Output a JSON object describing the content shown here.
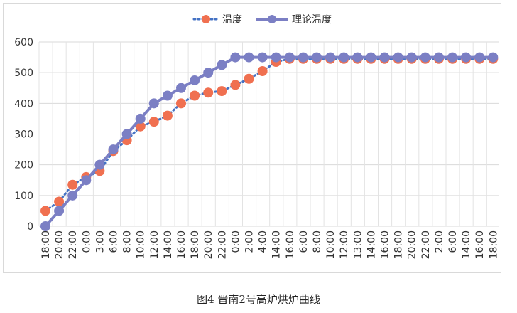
{
  "caption": "图4  晋南2号高炉烘炉曲线",
  "chart_data": {
    "type": "line",
    "title": "",
    "xlabel": "",
    "ylabel": "",
    "ylim": [
      0,
      600
    ],
    "yticks": [
      0,
      100,
      200,
      300,
      400,
      500,
      600
    ],
    "grid": true,
    "legend_position": "top-center",
    "categories": [
      "18:00",
      "20:00",
      "22:00",
      "0:00",
      "3:00",
      "6:00",
      "8:00",
      "10:00",
      "12:00",
      "14:00",
      "16:00",
      "18:00",
      "20:00",
      "22:00",
      "0:00",
      "2:00",
      "4:00",
      "14:00",
      "16:00",
      "6:00",
      "8:00",
      "10:00",
      "12:00",
      "13:00",
      "14:00",
      "16:00",
      "18:00",
      "20:00",
      "22:00",
      "2:00",
      "6:00",
      "14:00",
      "16:00",
      "18:00"
    ],
    "series": [
      {
        "name": "温度",
        "style": "dotted-marker",
        "color": "#f07050",
        "line_color": "#4472c4",
        "values": [
          50,
          80,
          135,
          160,
          180,
          245,
          280,
          325,
          340,
          360,
          400,
          425,
          435,
          440,
          460,
          480,
          505,
          535,
          545,
          545,
          545,
          545,
          545,
          545,
          545,
          545,
          545,
          545,
          545,
          545,
          545,
          545,
          545,
          545
        ]
      },
      {
        "name": "理论温度",
        "style": "solid-marker",
        "color": "#7b7fc4",
        "values": [
          0,
          50,
          100,
          150,
          200,
          250,
          300,
          350,
          400,
          425,
          450,
          475,
          500,
          525,
          550,
          550,
          550,
          550,
          550,
          550,
          550,
          550,
          550,
          550,
          550,
          550,
          550,
          550,
          550,
          550,
          550,
          550,
          550,
          550
        ]
      }
    ]
  }
}
